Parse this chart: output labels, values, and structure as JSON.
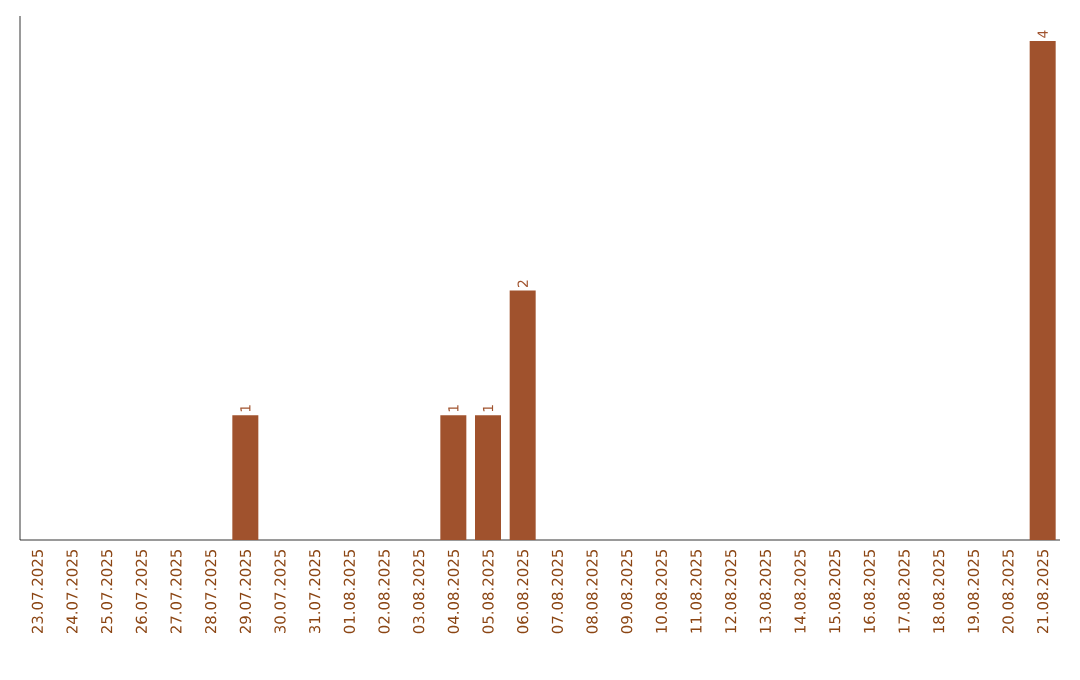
{
  "chart_data": {
    "type": "bar",
    "categories": [
      "23.07.2025",
      "24.07.2025",
      "25.07.2025",
      "26.07.2025",
      "27.07.2025",
      "28.07.2025",
      "29.07.2025",
      "30.07.2025",
      "31.07.2025",
      "01.08.2025",
      "02.08.2025",
      "03.08.2025",
      "04.08.2025",
      "05.08.2025",
      "06.08.2025",
      "07.08.2025",
      "08.08.2025",
      "09.08.2025",
      "10.08.2025",
      "11.08.2025",
      "12.08.2025",
      "13.08.2025",
      "14.08.2025",
      "15.08.2025",
      "16.08.2025",
      "17.08.2025",
      "18.08.2025",
      "19.08.2025",
      "20.08.2025",
      "21.08.2025"
    ],
    "values": [
      0,
      0,
      0,
      0,
      0,
      0,
      1,
      0,
      0,
      0,
      0,
      0,
      1,
      1,
      2,
      0,
      0,
      0,
      0,
      0,
      0,
      0,
      0,
      0,
      0,
      0,
      0,
      0,
      0,
      4
    ],
    "value_labels": [
      null,
      null,
      null,
      null,
      null,
      null,
      "1",
      null,
      null,
      null,
      null,
      null,
      "1",
      "1",
      "2",
      null,
      null,
      null,
      null,
      null,
      null,
      null,
      null,
      null,
      null,
      null,
      null,
      null,
      null,
      "4"
    ],
    "color": "#a0522d"
  }
}
